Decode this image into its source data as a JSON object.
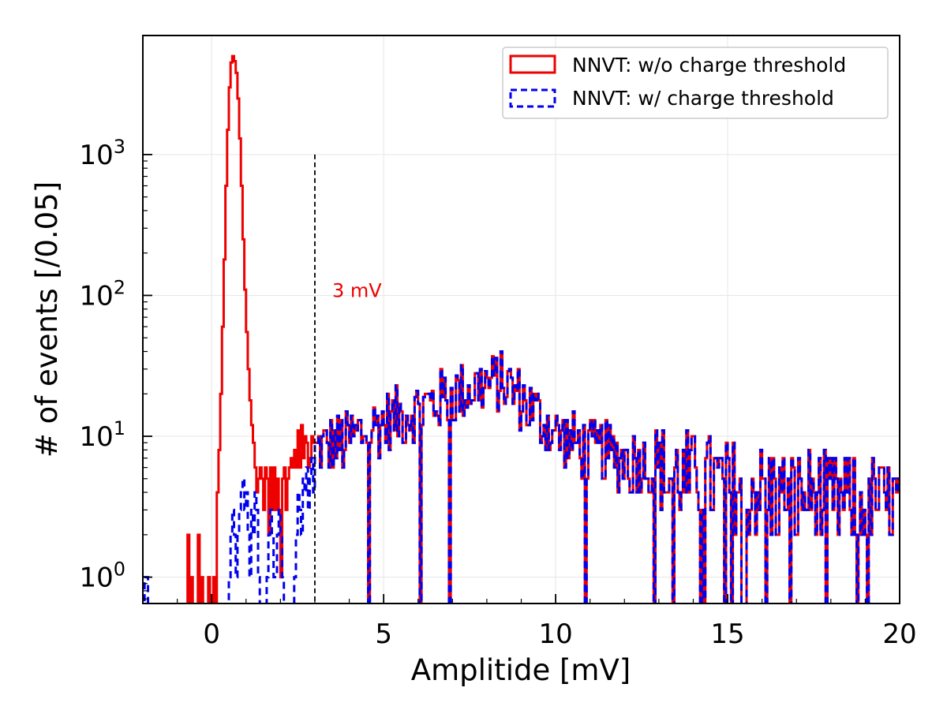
{
  "chart_data": {
    "type": "histogram",
    "title": "",
    "xlabel": "Amplitide [mV]",
    "ylabel": "# of events [/0.05]",
    "xlim": [
      -2,
      20
    ],
    "ylim": [
      0.65,
      7000
    ],
    "yscale": "log",
    "bin_width_mV": 0.05,
    "grid": true,
    "legend_position": "top-right",
    "x_ticks": [
      {
        "value": 0,
        "label": "0"
      },
      {
        "value": 5,
        "label": "5"
      },
      {
        "value": 10,
        "label": "10"
      },
      {
        "value": 15,
        "label": "15"
      },
      {
        "value": 20,
        "label": "20"
      }
    ],
    "y_ticks": [
      {
        "value": 1,
        "base": "10",
        "exp": "0"
      },
      {
        "value": 10,
        "base": "10",
        "exp": "1"
      },
      {
        "value": 100,
        "base": "10",
        "exp": "2"
      },
      {
        "value": 1000,
        "base": "10",
        "exp": "3"
      }
    ],
    "series": [
      {
        "name": "NNVT: w/o charge threshold",
        "color": "#ee0000",
        "style": "solid",
        "peak_region": {
          "centers": [
            -0.7,
            -0.6,
            -0.4,
            -0.3,
            -0.1,
            0.05,
            0.15,
            0.2,
            0.25,
            0.3,
            0.35,
            0.4,
            0.45,
            0.5,
            0.55,
            0.6,
            0.65,
            0.7,
            0.75,
            0.8,
            0.85,
            0.9,
            0.95,
            1.0,
            1.05,
            1.1,
            1.15,
            1.2,
            1.25,
            1.3,
            1.35,
            1.4,
            1.45,
            1.5,
            1.55,
            1.6,
            1.65,
            1.7,
            1.75,
            1.8,
            1.85,
            1.9,
            1.95,
            2.0,
            2.05,
            2.1,
            2.15,
            2.2,
            2.25,
            2.3,
            2.35,
            2.4,
            2.45,
            2.5,
            2.55,
            2.6,
            2.65,
            2.7,
            2.75,
            2.8,
            2.85,
            2.9,
            2.95
          ],
          "counts": [
            2,
            1,
            2,
            1,
            1,
            1,
            4,
            8,
            20,
            60,
            180,
            600,
            1500,
            3000,
            4500,
            5000,
            4600,
            3800,
            2500,
            1300,
            600,
            250,
            110,
            55,
            30,
            18,
            12,
            9,
            6,
            4,
            5,
            6,
            5,
            3,
            6,
            5,
            2,
            6,
            3,
            6,
            3,
            5,
            3,
            1,
            5,
            6,
            3,
            5,
            6,
            7,
            6,
            8,
            6,
            11,
            6,
            12,
            7,
            10,
            9,
            6,
            7,
            10,
            9
          ]
        }
      },
      {
        "name": "NNVT: w/ charge threshold",
        "color": "#0000ee",
        "style": "dashed",
        "peak_region": {
          "centers": [
            -1.95,
            -1.9,
            0.5,
            0.55,
            0.6,
            0.65,
            0.7,
            0.75,
            0.8,
            0.85,
            0.9,
            0.95,
            1.0,
            1.05,
            1.1,
            1.15,
            1.2,
            1.25,
            1.3,
            1.35,
            1.6,
            1.65,
            1.7,
            1.75,
            1.8,
            1.85,
            1.9,
            1.95,
            2.0,
            2.05,
            2.4,
            2.45,
            2.5,
            2.55,
            2.6,
            2.65,
            2.7,
            2.75,
            2.8,
            2.85,
            2.9,
            2.95
          ],
          "counts": [
            1,
            1,
            1,
            2,
            3,
            2,
            1,
            2,
            3,
            4,
            5,
            3,
            4,
            2,
            1,
            3,
            2,
            4,
            3,
            1,
            1,
            2,
            3,
            2,
            1,
            1,
            2,
            3,
            2,
            1,
            1,
            2,
            4,
            3,
            2,
            5,
            4,
            6,
            3,
            5,
            7,
            4
          ]
        }
      }
    ],
    "shared_tail": {
      "start_mV": 3.0,
      "end_mV": 20.0,
      "profile_x": [
        3.0,
        3.5,
        4.0,
        4.5,
        5.0,
        5.5,
        6.0,
        6.5,
        7.0,
        7.5,
        8.0,
        8.5,
        9.0,
        9.5,
        10.0,
        10.5,
        11.0,
        11.5,
        12.0,
        12.5,
        13.0,
        13.5,
        14.0,
        15.0,
        16.0,
        17.0,
        18.0,
        19.0,
        20.0
      ],
      "profile_y": [
        8,
        8.5,
        9.5,
        11,
        12.5,
        14,
        15.5,
        17.5,
        19.5,
        21.5,
        23.5,
        24,
        18.5,
        13.5,
        10.5,
        9,
        8,
        7.5,
        7,
        6.5,
        5.5,
        5.2,
        5.0,
        4.5,
        4.2,
        3.9,
        3.6,
        3.4,
        3.2
      ]
    },
    "annotations": [
      {
        "text": "3 mV",
        "x": 3.0,
        "y": 100,
        "color": "#ee0000",
        "vline_x": 3.0,
        "vline_top": 1000,
        "vline_style": "dashed"
      }
    ]
  }
}
